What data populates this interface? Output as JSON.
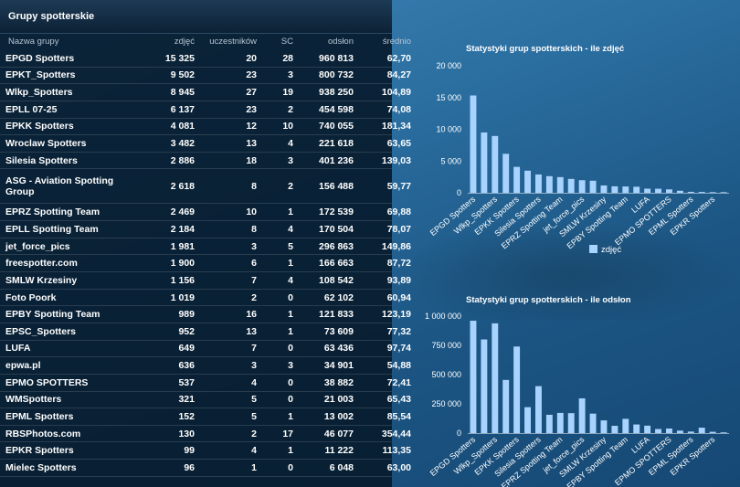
{
  "table": {
    "title": "Grupy spotterskie",
    "columns": [
      "Nazwa grupy",
      "zdjęć",
      "uczestników",
      "SC",
      "odsłon",
      "średnio"
    ],
    "rows": [
      [
        "EPGD Spotters",
        "15 325",
        "20",
        "28",
        "960 813",
        "62,70"
      ],
      [
        "EPKT_Spotters",
        "9 502",
        "23",
        "3",
        "800 732",
        "84,27"
      ],
      [
        "Wlkp_Spotters",
        "8 945",
        "27",
        "19",
        "938 250",
        "104,89"
      ],
      [
        "EPLL 07-25",
        "6 137",
        "23",
        "2",
        "454 598",
        "74,08"
      ],
      [
        "EPKK Spotters",
        "4 081",
        "12",
        "10",
        "740 055",
        "181,34"
      ],
      [
        "Wroclaw Spotters",
        "3 482",
        "13",
        "4",
        "221 618",
        "63,65"
      ],
      [
        "Silesia Spotters",
        "2 886",
        "18",
        "3",
        "401 236",
        "139,03"
      ],
      [
        "ASG - Aviation Spotting Group",
        "2 618",
        "8",
        "2",
        "156 488",
        "59,77"
      ],
      [
        "EPRZ Spotting Team",
        "2 469",
        "10",
        "1",
        "172 539",
        "69,88"
      ],
      [
        "EPLL Spotting Team",
        "2 184",
        "8",
        "4",
        "170 504",
        "78,07"
      ],
      [
        "jet_force_pics",
        "1 981",
        "3",
        "5",
        "296 863",
        "149,86"
      ],
      [
        "freespotter.com",
        "1 900",
        "6",
        "1",
        "166 663",
        "87,72"
      ],
      [
        "SMLW Krzesiny",
        "1 156",
        "7",
        "4",
        "108 542",
        "93,89"
      ],
      [
        "Foto Poork",
        "1 019",
        "2",
        "0",
        "62 102",
        "60,94"
      ],
      [
        "EPBY Spotting Team",
        "989",
        "16",
        "1",
        "121 833",
        "123,19"
      ],
      [
        "EPSC_Spotters",
        "952",
        "13",
        "1",
        "73 609",
        "77,32"
      ],
      [
        "LUFA",
        "649",
        "7",
        "0",
        "63 436",
        "97,74"
      ],
      [
        "epwa.pl",
        "636",
        "3",
        "3",
        "34 901",
        "54,88"
      ],
      [
        "EPMO SPOTTERS",
        "537",
        "4",
        "0",
        "38 882",
        "72,41"
      ],
      [
        "WMSpotters",
        "321",
        "5",
        "0",
        "21 003",
        "65,43"
      ],
      [
        "EPML Spotters",
        "152",
        "5",
        "1",
        "13 002",
        "85,54"
      ],
      [
        "RBSPhotos.com",
        "130",
        "2",
        "17",
        "46 077",
        "354,44"
      ],
      [
        "EPKR Spotters",
        "99",
        "4",
        "1",
        "11 222",
        "113,35"
      ],
      [
        "Mielec Spotters",
        "96",
        "1",
        "0",
        "6 048",
        "63,00"
      ]
    ]
  },
  "chart_data": [
    {
      "type": "bar",
      "title": "Statystyki grup spotterskich - ile zdjęć",
      "categories": [
        "EPGD Spotters",
        "EPKT_Spotters",
        "Wlkp_Spotters",
        "EPLL 07-25",
        "EPKK Spotters",
        "Wroclaw Spotters",
        "Silesia Spotters",
        "ASG - Aviation Spotting Group",
        "EPRZ Spotting Team",
        "EPLL Spotting Team",
        "jet_force_pics",
        "freespotter.com",
        "SMLW Krzesiny",
        "Foto Poork",
        "EPBY Spotting Team",
        "EPSC_Spotters",
        "LUFA",
        "epwa.pl",
        "EPMO SPOTTERS",
        "WMSpotters",
        "EPML Spotters",
        "RBSPhotos.com",
        "EPKR Spotters",
        "Mielec Spotters"
      ],
      "tick_labels": [
        "EPGD Spotters",
        "Wlkp_Spotters",
        "EPKK Spotters",
        "Silesia Spotters",
        "EPRZ Spotting Team",
        "jet_force_pics",
        "SMLW Krzesiny",
        "EPBY Spotting Team",
        "LUFA",
        "EPMO SPOTTERS",
        "EPML Spotters",
        "EPKR Spotters"
      ],
      "series": [
        {
          "name": "zdjęć",
          "values": [
            15325,
            9502,
            8945,
            6137,
            4081,
            3482,
            2886,
            2618,
            2469,
            2184,
            1981,
            1900,
            1156,
            1019,
            989,
            952,
            649,
            636,
            537,
            321,
            152,
            130,
            99,
            96
          ]
        }
      ],
      "ylim": [
        0,
        20000
      ],
      "yticks": [
        "0",
        "5 000",
        "10 000",
        "15 000",
        "20 000"
      ],
      "legend": "bottom",
      "grid": false,
      "bar_color": "#a9d3ff"
    },
    {
      "type": "bar",
      "title": "Statystyki grup spotterskich - ile odsłon",
      "categories": [
        "EPGD Spotters",
        "EPKT_Spotters",
        "Wlkp_Spotters",
        "EPLL 07-25",
        "EPKK Spotters",
        "Wroclaw Spotters",
        "Silesia Spotters",
        "ASG - Aviation Spotting Group",
        "EPRZ Spotting Team",
        "EPLL Spotting Team",
        "jet_force_pics",
        "freespotter.com",
        "SMLW Krzesiny",
        "Foto Poork",
        "EPBY Spotting Team",
        "EPSC_Spotters",
        "LUFA",
        "epwa.pl",
        "EPMO SPOTTERS",
        "WMSpotters",
        "EPML Spotters",
        "RBSPhotos.com",
        "EPKR Spotters",
        "Mielec Spotters"
      ],
      "tick_labels": [
        "EPGD Spotters",
        "Wlkp_Spotters",
        "EPKK Spotters",
        "Silesia Spotters",
        "EPRZ Spotting Team",
        "jet_force_pics",
        "SMLW Krzesiny",
        "EPBY Spotting Team",
        "LUFA",
        "EPMO SPOTTERS",
        "EPML Spotters",
        "EPKR Spotters"
      ],
      "series": [
        {
          "values": [
            960813,
            800732,
            938250,
            454598,
            740055,
            221618,
            401236,
            156488,
            172539,
            170504,
            296863,
            166663,
            108542,
            62102,
            121833,
            73609,
            63436,
            34901,
            38882,
            21003,
            13002,
            46077,
            11222,
            6048
          ]
        }
      ],
      "ylim": [
        0,
        1000000
      ],
      "yticks": [
        "0",
        "250 000",
        "500 000",
        "750 000",
        "1 000 000"
      ],
      "grid": false,
      "bar_color": "#a9d3ff"
    }
  ]
}
